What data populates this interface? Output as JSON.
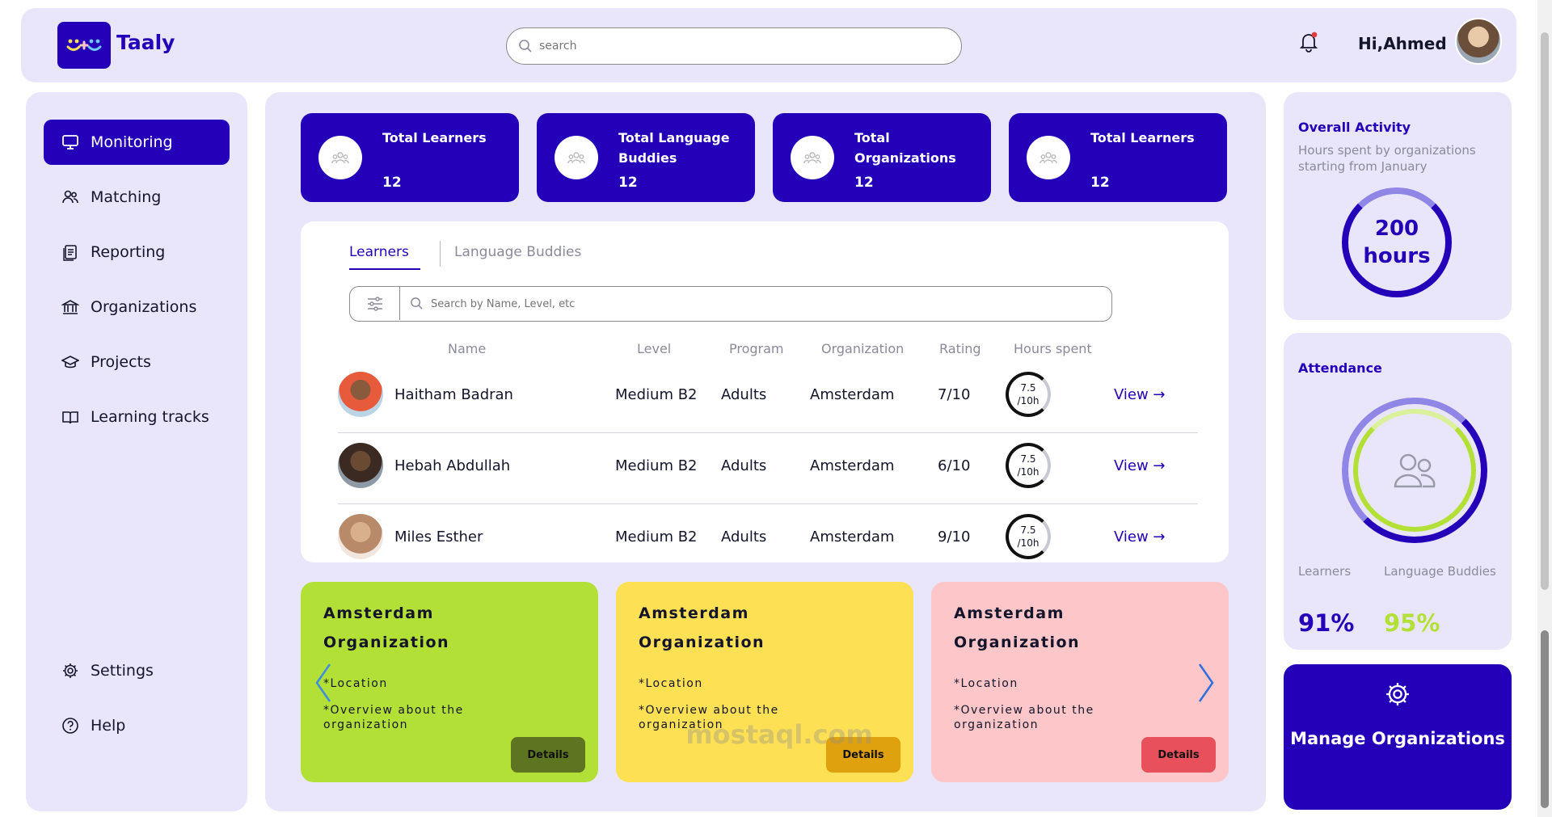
{
  "header": {
    "brand": "Taaly",
    "search_placeholder": "search",
    "greeting": "Hi,Ahmed"
  },
  "sidebar": {
    "items": [
      {
        "label": "Monitoring",
        "icon": "monitor-icon",
        "active": true
      },
      {
        "label": "Matching",
        "icon": "users-icon"
      },
      {
        "label": "Reporting",
        "icon": "report-icon"
      },
      {
        "label": "Organizations",
        "icon": "bank-icon"
      },
      {
        "label": "Projects",
        "icon": "graduation-cap-icon"
      },
      {
        "label": "Learning tracks",
        "icon": "book-icon"
      }
    ],
    "bottom": [
      {
        "label": "Settings",
        "icon": "gear-icon"
      },
      {
        "label": "Help",
        "icon": "help-icon"
      }
    ]
  },
  "stats": [
    {
      "label": "Total Learners",
      "value": "12"
    },
    {
      "label": "Total Language Buddies",
      "value": "12"
    },
    {
      "label": "Total Organizations",
      "value": "12"
    },
    {
      "label": "Total Learners",
      "value": "12"
    }
  ],
  "table": {
    "tabs": [
      "Learners",
      "Language Buddies"
    ],
    "search_placeholder": "Search by Name, Level, etc",
    "headers": [
      "Name",
      "Level",
      "Program",
      "Organization",
      "Rating",
      "Hours spent"
    ],
    "rows": [
      {
        "name": "Haitham Badran",
        "level": "Medium B2",
        "program": "Adults",
        "organization": "Amsterdam",
        "rating": "7/10",
        "hours_a": "7.5",
        "hours_b": "/10h",
        "view": "View →"
      },
      {
        "name": "Hebah Abdullah",
        "level": "Medium B2",
        "program": "Adults",
        "organization": "Amsterdam",
        "rating": "6/10",
        "hours_a": "7.5",
        "hours_b": "/10h",
        "view": "View →"
      },
      {
        "name": "Miles Esther",
        "level": "Medium B2",
        "program": "Adults",
        "organization": "Amsterdam",
        "rating": "9/10",
        "hours_a": "7.5",
        "hours_b": "/10h",
        "view": "View →"
      }
    ]
  },
  "org_cards": [
    {
      "line1": "Amsterdam",
      "line2": "Organization",
      "location": "*Location",
      "overview": "*Overview about the organization",
      "button": "Details",
      "bg": "#b3e036",
      "btn_bg": "#5d7521",
      "btn_fg": "#111111"
    },
    {
      "line1": "Amsterdam",
      "line2": "Organization",
      "location": "*Location",
      "overview": "*Overview about the organization",
      "button": "Details",
      "bg": "#fde054",
      "btn_bg": "#e0a10e",
      "btn_fg": "#111111"
    },
    {
      "line1": "Amsterdam",
      "line2": "Organization",
      "location": "*Location",
      "overview": "*Overview about the organization",
      "button": "Details",
      "bg": "#fdc7c9",
      "btn_bg": "#e8505b",
      "btn_fg": "#111111"
    }
  ],
  "overall_activity": {
    "title": "Overall Activity",
    "subtitle": "Hours spent by organizations starting from January",
    "value": "200",
    "unit": "hours"
  },
  "attendance": {
    "title": "Attendance",
    "learners_label": "Learners",
    "buddies_label": "Language Buddies",
    "learners_value": "91%",
    "buddies_value": "95%",
    "learners_color": "#2400b8",
    "buddies_color": "#b3e036"
  },
  "manage": {
    "label": "Manage Organizations"
  },
  "watermark": "mostaql.com",
  "colors": {
    "primary": "#2400b8",
    "panel": "#e9e6fb"
  }
}
